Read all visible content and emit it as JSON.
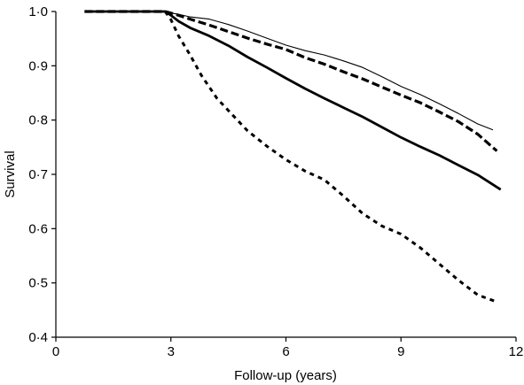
{
  "chart_data": {
    "type": "line",
    "title": "",
    "xlabel": "Follow-up (years)",
    "ylabel": "Survival",
    "xlim": [
      0,
      12
    ],
    "ylim": [
      0.4,
      1.0
    ],
    "x_ticks": [
      0,
      3,
      6,
      9,
      12
    ],
    "x_tick_labels": [
      "0",
      "3",
      "6",
      "9",
      "12"
    ],
    "y_ticks": [
      0.4,
      0.5,
      0.6,
      0.7,
      0.8,
      0.9,
      1.0
    ],
    "y_tick_labels": [
      "0·4",
      "0·5",
      "0·6",
      "0·7",
      "0·8",
      "0·9",
      "1·0"
    ],
    "grid": false,
    "legend": "none",
    "series": [
      {
        "style": "solid-thin",
        "x": [
          0.75,
          1,
          2,
          2.85,
          3,
          3.2,
          3.5,
          4,
          4.5,
          5,
          5.5,
          6,
          6.5,
          7,
          7.5,
          8,
          8.5,
          9,
          9.5,
          10,
          10.5,
          11,
          11.4
        ],
        "y": [
          1.0,
          1.0,
          1.0,
          1.0,
          0.997,
          0.995,
          0.99,
          0.986,
          0.976,
          0.964,
          0.951,
          0.938,
          0.928,
          0.92,
          0.909,
          0.897,
          0.88,
          0.862,
          0.847,
          0.83,
          0.812,
          0.793,
          0.782
        ]
      },
      {
        "style": "dashed-thick",
        "x": [
          0.75,
          1,
          2,
          2.85,
          3,
          3.2,
          3.5,
          4,
          4.5,
          5,
          5.5,
          6,
          6.5,
          7,
          7.5,
          8,
          8.5,
          9,
          9.5,
          10,
          10.5,
          11,
          11.5
        ],
        "y": [
          1.0,
          1.0,
          1.0,
          1.0,
          0.997,
          0.993,
          0.986,
          0.975,
          0.963,
          0.951,
          0.94,
          0.93,
          0.915,
          0.903,
          0.889,
          0.876,
          0.861,
          0.846,
          0.832,
          0.815,
          0.797,
          0.774,
          0.743
        ]
      },
      {
        "style": "solid-thick",
        "x": [
          0.75,
          1,
          2,
          2.85,
          3,
          3.2,
          3.5,
          4,
          4.5,
          5,
          5.5,
          6,
          6.5,
          7,
          7.5,
          8,
          8.5,
          9,
          9.5,
          10,
          10.5,
          11,
          11.6
        ],
        "y": [
          1.0,
          1.0,
          1.0,
          1.0,
          0.993,
          0.982,
          0.97,
          0.955,
          0.937,
          0.916,
          0.897,
          0.877,
          0.858,
          0.84,
          0.823,
          0.806,
          0.787,
          0.768,
          0.751,
          0.735,
          0.717,
          0.699,
          0.672
        ]
      },
      {
        "style": "dotted-thick",
        "x": [
          2.85,
          3,
          3.2,
          3.5,
          3.8,
          4.2,
          4.6,
          5,
          5.5,
          6,
          6.5,
          7,
          7.5,
          8,
          8.5,
          9,
          9.5,
          10,
          10.5,
          11,
          11.5
        ],
        "y": [
          1.0,
          0.985,
          0.955,
          0.92,
          0.882,
          0.84,
          0.81,
          0.78,
          0.752,
          0.727,
          0.706,
          0.69,
          0.66,
          0.628,
          0.605,
          0.59,
          0.565,
          0.535,
          0.505,
          0.478,
          0.465
        ]
      }
    ]
  }
}
